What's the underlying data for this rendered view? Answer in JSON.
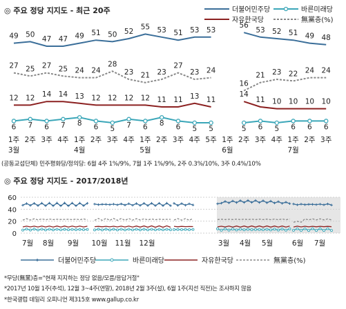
{
  "colors": {
    "minjoo": "#3a6e99",
    "bareun": "#3aa6b8",
    "jayu": "#8b2020",
    "none": "#888888",
    "band": "#e6e6e6"
  },
  "chart_data": [
    {
      "type": "line",
      "title": "◎ 주요 정당 지지도 - 최근 20주",
      "legend_position": "top-right",
      "categories": [
        "1주",
        "2주",
        "3주",
        "4주",
        "1주",
        "2주",
        "3주",
        "4주",
        "1주",
        "2주",
        "3주",
        "4주",
        "5주",
        "1주",
        "2주",
        "3주",
        "4주",
        "1주",
        "2주",
        "3주"
      ],
      "month_labels": [
        {
          "at": 0,
          "text": "3월"
        },
        {
          "at": 4,
          "text": "4월"
        },
        {
          "at": 8,
          "text": "5월"
        },
        {
          "at": 13,
          "text": "6월"
        },
        {
          "at": 17,
          "text": "7월"
        }
      ],
      "series": [
        {
          "name": "더불어민주당",
          "color": "#3a6e99",
          "marker": "none",
          "values": [
            49,
            50,
            47,
            47,
            49,
            51,
            50,
            52,
            55,
            53,
            51,
            53,
            53,
            null,
            56,
            53,
            52,
            51,
            49,
            48
          ]
        },
        {
          "name": "바른미래당",
          "color": "#3aa6b8",
          "marker": "circle",
          "values": [
            6,
            7,
            6,
            7,
            8,
            6,
            5,
            7,
            6,
            8,
            6,
            5,
            5,
            null,
            5,
            6,
            5,
            6,
            6,
            6
          ]
        },
        {
          "name": "자유한국당",
          "color": "#8b2020",
          "marker": "none",
          "values": [
            12,
            12,
            14,
            14,
            13,
            12,
            12,
            12,
            12,
            11,
            11,
            13,
            11,
            null,
            14,
            11,
            10,
            10,
            10,
            10
          ]
        },
        {
          "name": "無黨층(%)",
          "color": "#888888",
          "marker": "none",
          "dashed": true,
          "values": [
            27,
            25,
            27,
            25,
            24,
            24,
            28,
            23,
            21,
            23,
            27,
            23,
            24,
            null,
            16,
            21,
            23,
            22,
            24,
            24
          ]
        }
      ],
      "footnote": "(공동교섭단체) 민주평화당/정의당: 6월 4주 1%/9%, 7월 1주 1%/9%, 2주 0.3%/10%, 3주 0.4%/10%"
    },
    {
      "type": "line",
      "title": "◎ 주요 정당 지지도 - 2017/2018년",
      "legend_position": "bottom",
      "ylim": [
        0,
        60
      ],
      "yticks": [
        0,
        20,
        40,
        60
      ],
      "x_month_labels": [
        "7월",
        "8월",
        "9월",
        "10월",
        "11월",
        "12월",
        "3월",
        "4월",
        "5월",
        "6월",
        "7월"
      ],
      "series": [
        {
          "name": "더불어민주당",
          "color": "#3a6e99",
          "marker": "plus",
          "approx_level": 48
        },
        {
          "name": "바른미래당",
          "color": "#3aa6b8",
          "marker": "circle",
          "approx_level": 6
        },
        {
          "name": "자유한국당",
          "color": "#8b2020",
          "marker": "none",
          "approx_level": 11
        },
        {
          "name": "無黨층(%)",
          "color": "#888888",
          "marker": "none",
          "dashed": true,
          "approx_level": 23
        }
      ],
      "notes": [
        "*무당(無黨)층=\"현재 지지하는 정당 없음/모름/응답거절\"",
        "*2017년 10월 1주(추석), 12월 3~4주(연말), 2018년 2월 3주(설), 6월 1주(지선 직전)는 조사하지 않음",
        "*한국갤럽 데일리 오피니언 제315호 www.gallup.co.kr"
      ]
    }
  ]
}
